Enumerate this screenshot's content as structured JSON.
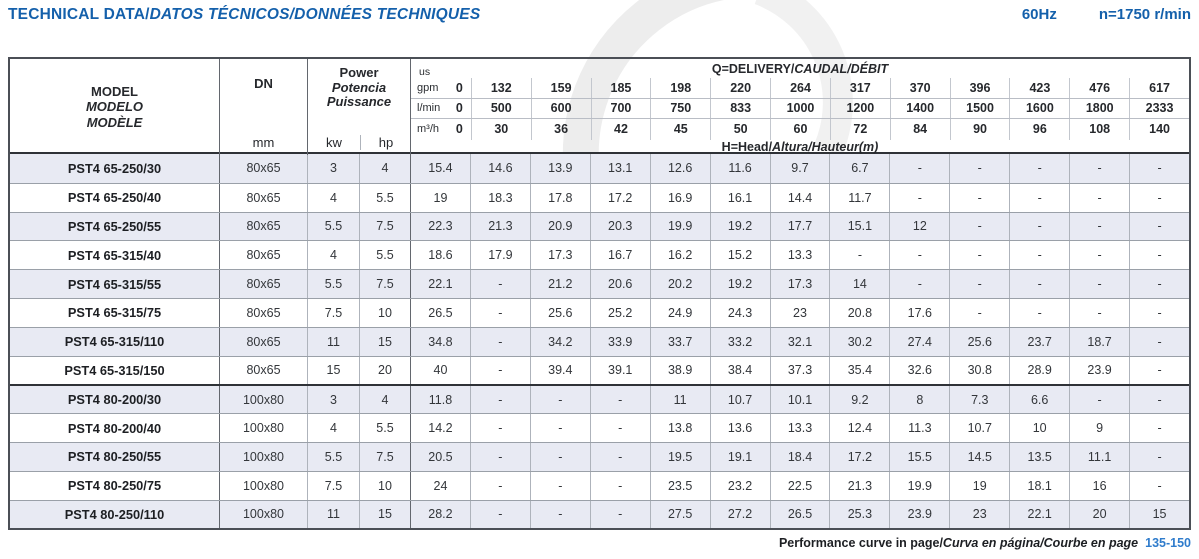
{
  "meta": {
    "title_en": "TECHNICAL DATA/",
    "title_es": "DATOS TÉCNICOS/",
    "title_fr": "DONNÉES TECHNIQUES",
    "frequency": "60Hz",
    "speed": "n=1750 r/min"
  },
  "colors": {
    "accent_blue": "#1460ab",
    "pages_blue": "#2f7ccc",
    "row_alt": "#e8eaf3"
  },
  "table": {
    "header": {
      "model_en": "MODEL",
      "model_es": "MODELO",
      "model_fr": "MODÈLE",
      "dn": "DN",
      "dn_unit": "mm",
      "power_en": "Power",
      "power_es": "Potencia",
      "power_fr": "Puissance",
      "kw": "kw",
      "hp": "hp",
      "q_title_en": "Q=DELIVERY/",
      "q_title_esfr": "CAUDAL/DÉBIT",
      "h_title_en": "H=Head/",
      "h_title_esfr": "Altura/Hauteur(m)"
    },
    "flow_rows": [
      {
        "key": "us-gpm",
        "unit_prefix": "us",
        "unit": "gpm",
        "zero": "0",
        "values": [
          "132",
          "159",
          "185",
          "198",
          "220",
          "264",
          "317",
          "370",
          "396",
          "423",
          "476",
          "617"
        ]
      },
      {
        "key": "l-min",
        "unit_prefix": "",
        "unit": "l/min",
        "zero": "0",
        "values": [
          "500",
          "600",
          "700",
          "750",
          "833",
          "1000",
          "1200",
          "1400",
          "1500",
          "1600",
          "1800",
          "2333"
        ]
      },
      {
        "key": "m3-h",
        "unit_prefix": "",
        "unit": "m³/h",
        "zero": "0",
        "values": [
          "30",
          "36",
          "42",
          "45",
          "50",
          "60",
          "72",
          "84",
          "90",
          "96",
          "108",
          "140"
        ]
      }
    ],
    "rows": [
      {
        "model": "PST4 65-250/30",
        "dn": "80x65",
        "kw": "3",
        "hp": "4",
        "group_start": false,
        "head": [
          "15.4",
          "14.6",
          "13.9",
          "13.1",
          "12.6",
          "11.6",
          "9.7",
          "6.7",
          "-",
          "-",
          "-",
          "-",
          "-"
        ]
      },
      {
        "model": "PST4 65-250/40",
        "dn": "80x65",
        "kw": "4",
        "hp": "5.5",
        "group_start": false,
        "head": [
          "19",
          "18.3",
          "17.8",
          "17.2",
          "16.9",
          "16.1",
          "14.4",
          "11.7",
          "-",
          "-",
          "-",
          "-",
          "-"
        ]
      },
      {
        "model": "PST4 65-250/55",
        "dn": "80x65",
        "kw": "5.5",
        "hp": "7.5",
        "group_start": false,
        "head": [
          "22.3",
          "21.3",
          "20.9",
          "20.3",
          "19.9",
          "19.2",
          "17.7",
          "15.1",
          "12",
          "-",
          "-",
          "-",
          "-"
        ]
      },
      {
        "model": "PST4 65-315/40",
        "dn": "80x65",
        "kw": "4",
        "hp": "5.5",
        "group_start": false,
        "head": [
          "18.6",
          "17.9",
          "17.3",
          "16.7",
          "16.2",
          "15.2",
          "13.3",
          "-",
          "-",
          "-",
          "-",
          "-",
          "-"
        ]
      },
      {
        "model": "PST4 65-315/55",
        "dn": "80x65",
        "kw": "5.5",
        "hp": "7.5",
        "group_start": false,
        "head": [
          "22.1",
          "-",
          "21.2",
          "20.6",
          "20.2",
          "19.2",
          "17.3",
          "14",
          "-",
          "-",
          "-",
          "-",
          "-"
        ]
      },
      {
        "model": "PST4 65-315/75",
        "dn": "80x65",
        "kw": "7.5",
        "hp": "10",
        "group_start": false,
        "head": [
          "26.5",
          "-",
          "25.6",
          "25.2",
          "24.9",
          "24.3",
          "23",
          "20.8",
          "17.6",
          "-",
          "-",
          "-",
          "-"
        ]
      },
      {
        "model": "PST4 65-315/110",
        "dn": "80x65",
        "kw": "11",
        "hp": "15",
        "group_start": false,
        "head": [
          "34.8",
          "-",
          "34.2",
          "33.9",
          "33.7",
          "33.2",
          "32.1",
          "30.2",
          "27.4",
          "25.6",
          "23.7",
          "18.7",
          "-"
        ]
      },
      {
        "model": "PST4 65-315/150",
        "dn": "80x65",
        "kw": "15",
        "hp": "20",
        "group_start": false,
        "head": [
          "40",
          "-",
          "39.4",
          "39.1",
          "38.9",
          "38.4",
          "37.3",
          "35.4",
          "32.6",
          "30.8",
          "28.9",
          "23.9",
          "-"
        ]
      },
      {
        "model": "PST4 80-200/30",
        "dn": "100x80",
        "kw": "3",
        "hp": "4",
        "group_start": true,
        "head": [
          "11.8",
          "-",
          "-",
          "-",
          "11",
          "10.7",
          "10.1",
          "9.2",
          "8",
          "7.3",
          "6.6",
          "-",
          "-"
        ]
      },
      {
        "model": "PST4 80-200/40",
        "dn": "100x80",
        "kw": "4",
        "hp": "5.5",
        "group_start": false,
        "head": [
          "14.2",
          "-",
          "-",
          "-",
          "13.8",
          "13.6",
          "13.3",
          "12.4",
          "11.3",
          "10.7",
          "10",
          "9",
          "-"
        ]
      },
      {
        "model": "PST4 80-250/55",
        "dn": "100x80",
        "kw": "5.5",
        "hp": "7.5",
        "group_start": false,
        "head": [
          "20.5",
          "-",
          "-",
          "-",
          "19.5",
          "19.1",
          "18.4",
          "17.2",
          "15.5",
          "14.5",
          "13.5",
          "11.1",
          "-"
        ]
      },
      {
        "model": "PST4 80-250/75",
        "dn": "100x80",
        "kw": "7.5",
        "hp": "10",
        "group_start": false,
        "head": [
          "24",
          "-",
          "-",
          "-",
          "23.5",
          "23.2",
          "22.5",
          "21.3",
          "19.9",
          "19",
          "18.1",
          "16",
          "-"
        ]
      },
      {
        "model": "PST4 80-250/110",
        "dn": "100x80",
        "kw": "11",
        "hp": "15",
        "group_start": false,
        "head": [
          "28.2",
          "-",
          "-",
          "-",
          "27.5",
          "27.2",
          "26.5",
          "25.3",
          "23.9",
          "23",
          "22.1",
          "20",
          "15"
        ]
      }
    ]
  },
  "footer": {
    "en": "Performance curve in page/",
    "es": "Curva en página/",
    "fr": "Courbe en page",
    "pages": "135-150"
  }
}
